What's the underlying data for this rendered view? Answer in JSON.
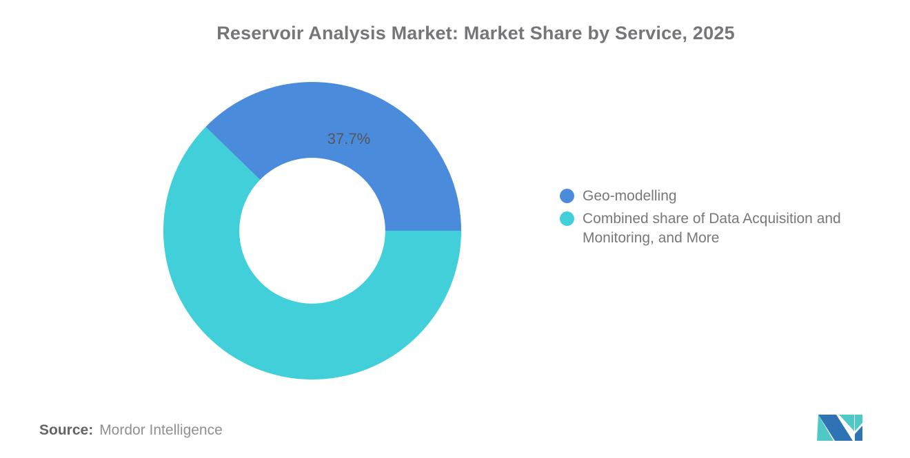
{
  "title": "Reservoir Analysis Market: Market Share by Service, 2025",
  "chart_data": {
    "type": "pie",
    "donut": true,
    "title": "Reservoir Analysis Market: Market Share by Service, 2025",
    "slices": [
      {
        "label": "Geo-modelling",
        "value": 37.7,
        "color": "#4A8CDB",
        "data_label": "37.7%"
      },
      {
        "label": "Combined share of Data Acquisition and Monitoring, and More",
        "value": 62.3,
        "color": "#41D0D9",
        "data_label": ""
      }
    ],
    "rotation_deg": -45.72,
    "inner_radius_ratio": 0.49,
    "legend_position": "right",
    "data_label_color": "#55565A",
    "grid": false
  },
  "legend": {
    "items": [
      {
        "text": "Geo-modelling",
        "color": "#4A8CDB"
      },
      {
        "text": "Combined share of Data Acquisition and\nMonitoring, and More",
        "color": "#41D0D9"
      }
    ]
  },
  "source": {
    "label": "Source:",
    "value": "Mordor Intelligence"
  },
  "logo": {
    "colors": {
      "blue": "#2E74B5",
      "teal": "#4FC8C6"
    }
  }
}
